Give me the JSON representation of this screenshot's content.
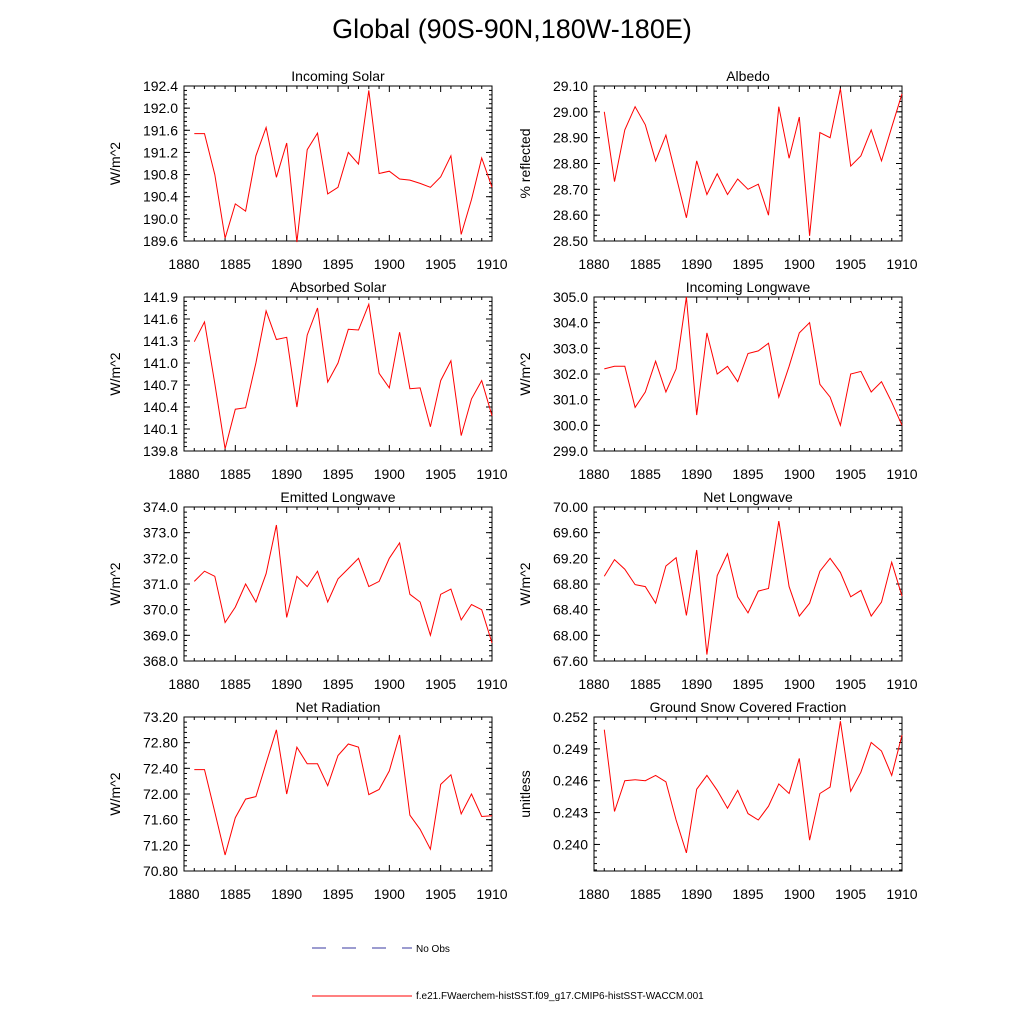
{
  "page_title": "Global (90S-90N,180W-180E)",
  "legend": {
    "no_obs_label": "No Obs",
    "no_obs_color": "#3a3aa0",
    "model_label": "f.e21.FWaerchem-histSST.f09_g17.CMIP6-histSST-WACCM.001",
    "model_color": "#ff0000"
  },
  "chart_data": [
    {
      "type": "line",
      "title": "Incoming Solar",
      "ylabel": "W/m^2",
      "xlabel": "",
      "xlim": [
        1880,
        1910
      ],
      "ylim": [
        189.6,
        192.4
      ],
      "xticks": [
        1880,
        1885,
        1890,
        1895,
        1900,
        1905,
        1910
      ],
      "yticks": [
        "189.6",
        "190.0",
        "190.4",
        "190.8",
        "191.2",
        "191.6",
        "192.0",
        "192.4"
      ],
      "x": [
        1881,
        1882,
        1883,
        1884,
        1885,
        1886,
        1887,
        1888,
        1889,
        1890,
        1891,
        1892,
        1893,
        1894,
        1895,
        1896,
        1897,
        1898,
        1899,
        1900,
        1901,
        1902,
        1903,
        1904,
        1905,
        1906,
        1907,
        1908,
        1909,
        1910
      ],
      "values": [
        191.54,
        191.54,
        190.8,
        189.65,
        190.27,
        190.14,
        191.14,
        191.65,
        190.75,
        191.37,
        189.58,
        191.25,
        191.55,
        190.45,
        190.57,
        191.2,
        190.99,
        192.32,
        190.82,
        190.86,
        190.72,
        190.7,
        190.64,
        190.57,
        190.76,
        191.14,
        189.72,
        190.35,
        191.1,
        190.57
      ],
      "color": "#ff0000"
    },
    {
      "type": "line",
      "title": "Albedo",
      "ylabel": "% reflected",
      "xlabel": "",
      "xlim": [
        1880,
        1910
      ],
      "ylim": [
        28.5,
        29.1
      ],
      "xticks": [
        1880,
        1885,
        1890,
        1895,
        1900,
        1905,
        1910
      ],
      "yticks": [
        "28.50",
        "28.60",
        "28.70",
        "28.80",
        "28.90",
        "29.00",
        "29.10"
      ],
      "x": [
        1881,
        1882,
        1883,
        1884,
        1885,
        1886,
        1887,
        1888,
        1889,
        1890,
        1891,
        1892,
        1893,
        1894,
        1895,
        1896,
        1897,
        1898,
        1899,
        1900,
        1901,
        1902,
        1903,
        1904,
        1905,
        1906,
        1907,
        1908,
        1909,
        1910
      ],
      "values": [
        29.0,
        28.73,
        28.93,
        29.02,
        28.95,
        28.81,
        28.91,
        28.75,
        28.59,
        28.81,
        28.68,
        28.76,
        28.68,
        28.74,
        28.7,
        28.72,
        28.6,
        29.02,
        28.82,
        28.98,
        28.52,
        28.92,
        28.9,
        29.09,
        28.79,
        28.83,
        28.93,
        28.81,
        28.94,
        29.07
      ],
      "color": "#ff0000"
    },
    {
      "type": "line",
      "title": "Absorbed Solar",
      "ylabel": "W/m^2",
      "xlabel": "",
      "xlim": [
        1880,
        1910
      ],
      "ylim": [
        139.8,
        141.9
      ],
      "xticks": [
        1880,
        1885,
        1890,
        1895,
        1900,
        1905,
        1910
      ],
      "yticks": [
        "139.8",
        "140.1",
        "140.4",
        "140.7",
        "141.0",
        "141.3",
        "141.6",
        "141.9"
      ],
      "x": [
        1881,
        1882,
        1883,
        1884,
        1885,
        1886,
        1887,
        1888,
        1889,
        1890,
        1891,
        1892,
        1893,
        1894,
        1895,
        1896,
        1897,
        1898,
        1899,
        1900,
        1901,
        1902,
        1903,
        1904,
        1905,
        1906,
        1907,
        1908,
        1909,
        1910
      ],
      "values": [
        141.29,
        141.56,
        140.72,
        139.83,
        140.37,
        140.39,
        141.0,
        141.71,
        141.32,
        141.35,
        140.4,
        141.38,
        141.75,
        140.74,
        141.0,
        141.46,
        141.45,
        141.8,
        140.86,
        140.66,
        141.42,
        140.65,
        140.66,
        140.13,
        140.76,
        141.03,
        140.01,
        140.51,
        140.76,
        140.28
      ],
      "color": "#ff0000"
    },
    {
      "type": "line",
      "title": "Incoming Longwave",
      "ylabel": "W/m^2",
      "xlabel": "",
      "xlim": [
        1880,
        1910
      ],
      "ylim": [
        299.0,
        305.0
      ],
      "xticks": [
        1880,
        1885,
        1890,
        1895,
        1900,
        1905,
        1910
      ],
      "yticks": [
        "299.0",
        "300.0",
        "301.0",
        "302.0",
        "303.0",
        "304.0",
        "305.0"
      ],
      "x": [
        1881,
        1882,
        1883,
        1884,
        1885,
        1886,
        1887,
        1888,
        1889,
        1890,
        1891,
        1892,
        1893,
        1894,
        1895,
        1896,
        1897,
        1898,
        1899,
        1900,
        1901,
        1902,
        1903,
        1904,
        1905,
        1906,
        1907,
        1908,
        1909,
        1910
      ],
      "values": [
        302.2,
        302.3,
        302.3,
        300.7,
        301.3,
        302.5,
        301.3,
        302.2,
        305.0,
        300.4,
        303.6,
        302.0,
        302.3,
        301.7,
        302.8,
        302.9,
        303.2,
        301.1,
        302.3,
        303.6,
        304.0,
        301.6,
        301.1,
        300.0,
        302.0,
        302.1,
        301.3,
        301.7,
        300.9,
        300.0
      ],
      "color": "#ff0000"
    },
    {
      "type": "line",
      "title": "Emitted Longwave",
      "ylabel": "W/m^2",
      "xlabel": "",
      "xlim": [
        1880,
        1910
      ],
      "ylim": [
        368.0,
        374.0
      ],
      "xticks": [
        1880,
        1885,
        1890,
        1895,
        1900,
        1905,
        1910
      ],
      "yticks": [
        "368.0",
        "369.0",
        "370.0",
        "371.0",
        "372.0",
        "373.0",
        "374.0"
      ],
      "x": [
        1881,
        1882,
        1883,
        1884,
        1885,
        1886,
        1887,
        1888,
        1889,
        1890,
        1891,
        1892,
        1893,
        1894,
        1895,
        1896,
        1897,
        1898,
        1899,
        1900,
        1901,
        1902,
        1903,
        1904,
        1905,
        1906,
        1907,
        1908,
        1909,
        1910
      ],
      "values": [
        371.1,
        371.5,
        371.3,
        369.5,
        370.1,
        371.0,
        370.3,
        371.4,
        373.3,
        369.7,
        371.3,
        370.9,
        371.5,
        370.3,
        371.2,
        371.6,
        372.0,
        370.9,
        371.1,
        372.0,
        372.6,
        370.6,
        370.3,
        369.0,
        370.6,
        370.8,
        369.6,
        370.2,
        370.0,
        368.7
      ],
      "color": "#ff0000"
    },
    {
      "type": "line",
      "title": "Net Longwave",
      "ylabel": "W/m^2",
      "xlabel": "",
      "xlim": [
        1880,
        1910
      ],
      "ylim": [
        67.6,
        70.0
      ],
      "xticks": [
        1880,
        1885,
        1890,
        1895,
        1900,
        1905,
        1910
      ],
      "yticks": [
        "67.60",
        "68.00",
        "68.40",
        "68.80",
        "69.20",
        "69.60",
        "70.00"
      ],
      "x": [
        1881,
        1882,
        1883,
        1884,
        1885,
        1886,
        1887,
        1888,
        1889,
        1890,
        1891,
        1892,
        1893,
        1894,
        1895,
        1896,
        1897,
        1898,
        1899,
        1900,
        1901,
        1902,
        1903,
        1904,
        1905,
        1906,
        1907,
        1908,
        1909,
        1910
      ],
      "values": [
        68.92,
        69.18,
        69.03,
        68.79,
        68.76,
        68.5,
        69.08,
        69.21,
        68.31,
        69.33,
        67.7,
        68.93,
        69.27,
        68.6,
        68.35,
        68.69,
        68.73,
        69.78,
        68.76,
        68.3,
        68.5,
        69.0,
        69.2,
        68.98,
        68.6,
        68.7,
        68.3,
        68.52,
        69.14,
        68.61
      ],
      "color": "#ff0000"
    },
    {
      "type": "line",
      "title": "Net Radiation",
      "ylabel": "W/m^2",
      "xlabel": "",
      "xlim": [
        1880,
        1910
      ],
      "ylim": [
        70.8,
        73.2
      ],
      "xticks": [
        1880,
        1885,
        1890,
        1895,
        1900,
        1905,
        1910
      ],
      "yticks": [
        "70.80",
        "71.20",
        "71.60",
        "72.00",
        "72.40",
        "72.80",
        "73.20"
      ],
      "x": [
        1881,
        1882,
        1883,
        1884,
        1885,
        1886,
        1887,
        1888,
        1889,
        1890,
        1891,
        1892,
        1893,
        1894,
        1895,
        1896,
        1897,
        1898,
        1899,
        1900,
        1901,
        1902,
        1903,
        1904,
        1905,
        1906,
        1907,
        1908,
        1909,
        1910
      ],
      "values": [
        72.38,
        72.38,
        71.72,
        71.05,
        71.63,
        71.92,
        71.96,
        72.48,
        73.0,
        72.0,
        72.73,
        72.47,
        72.47,
        72.13,
        72.6,
        72.78,
        72.73,
        71.99,
        72.07,
        72.36,
        72.92,
        71.67,
        71.45,
        71.14,
        72.15,
        72.3,
        71.69,
        72.0,
        71.65,
        71.66
      ],
      "color": "#ff0000"
    },
    {
      "type": "line",
      "title": "Ground Snow Covered Fraction",
      "ylabel": "unitless",
      "xlabel": "",
      "xlim": [
        1880,
        1910
      ],
      "ylim": [
        0.2375,
        0.252
      ],
      "xticks": [
        1880,
        1885,
        1890,
        1895,
        1900,
        1905,
        1910
      ],
      "yticks": [
        "0.240",
        "0.243",
        "0.246",
        "0.249",
        "0.252"
      ],
      "ytick_values": [
        0.24,
        0.243,
        0.246,
        0.249,
        0.252
      ],
      "x": [
        1881,
        1882,
        1883,
        1884,
        1885,
        1886,
        1887,
        1888,
        1889,
        1890,
        1891,
        1892,
        1893,
        1894,
        1895,
        1896,
        1897,
        1898,
        1899,
        1900,
        1901,
        1902,
        1903,
        1904,
        1905,
        1906,
        1907,
        1908,
        1909,
        1910
      ],
      "values": [
        0.2508,
        0.2431,
        0.246,
        0.2461,
        0.246,
        0.2465,
        0.2459,
        0.2423,
        0.2392,
        0.2452,
        0.2465,
        0.2451,
        0.2434,
        0.2451,
        0.2429,
        0.2423,
        0.2436,
        0.2457,
        0.2448,
        0.2481,
        0.2404,
        0.2448,
        0.2454,
        0.2516,
        0.245,
        0.2468,
        0.2496,
        0.2488,
        0.2465,
        0.2503
      ],
      "color": "#ff0000"
    }
  ]
}
